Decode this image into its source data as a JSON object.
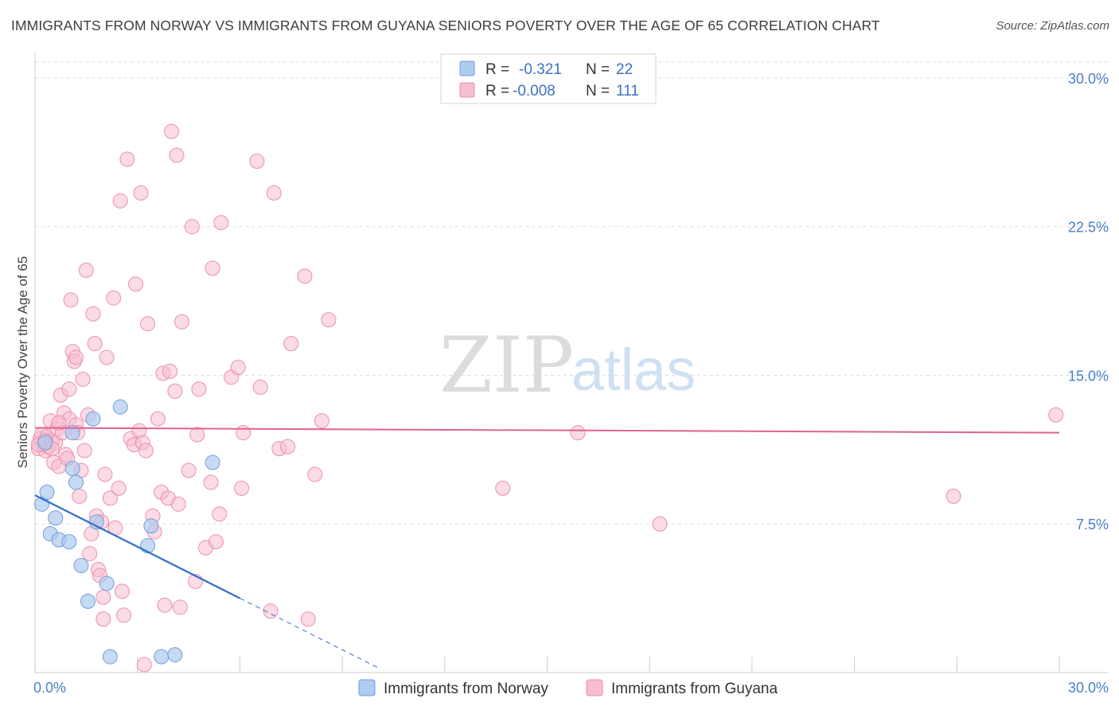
{
  "title": "IMMIGRANTS FROM NORWAY VS IMMIGRANTS FROM GUYANA SENIORS POVERTY OVER THE AGE OF 65 CORRELATION CHART",
  "source": "Source: ZipAtlas.com",
  "watermark": {
    "zip": "ZIP",
    "atlas": "atlas"
  },
  "colors": {
    "norway_fill": "#aecbf0",
    "norway_stroke": "#6d9fdc",
    "norway_line": "#2f6fcb",
    "guyana_fill": "#f7bdd0",
    "guyana_stroke": "#eb8fb0",
    "guyana_line": "#e0628f",
    "tick_text": "#4a7fc9",
    "grid": "#dddddd"
  },
  "legend": {
    "rows": [
      {
        "r_label": "R =",
        "r_value": "-0.321",
        "n_label": "N =",
        "n_value": "22"
      },
      {
        "r_label": "R =",
        "r_value": "-0.008",
        "n_label": "N =",
        "n_value": "111"
      }
    ]
  },
  "chart_data": {
    "type": "scatter",
    "title": "IMMIGRANTS FROM NORWAY VS IMMIGRANTS FROM GUYANA SENIORS POVERTY OVER THE AGE OF 65 CORRELATION CHART",
    "xlabel": "",
    "ylabel": "Seniors Poverty Over the Age of 65",
    "xlim": [
      0,
      30
    ],
    "ylim": [
      0,
      30.8
    ],
    "x_tick_labels": [
      {
        "value": 0,
        "label": "0.0%"
      },
      {
        "value": 30,
        "label": "30.0%"
      }
    ],
    "y_tick_labels": [
      {
        "value": 7.5,
        "label": "7.5%"
      },
      {
        "value": 15,
        "label": "15.0%"
      },
      {
        "value": 22.5,
        "label": "22.5%"
      },
      {
        "value": 30,
        "label": "30.0%"
      }
    ],
    "series": [
      {
        "name": "Immigrants from Norway",
        "R": -0.321,
        "N": 22,
        "trend": {
          "x0": 0,
          "y0": 8.95,
          "x1": 6.0,
          "y1": 3.75,
          "dash_to_x": 10.1
        },
        "points": [
          [
            0.2,
            8.5
          ],
          [
            0.35,
            9.1
          ],
          [
            0.45,
            7.0
          ],
          [
            0.6,
            7.8
          ],
          [
            0.7,
            6.7
          ],
          [
            1.0,
            6.6
          ],
          [
            1.1,
            12.1
          ],
          [
            1.1,
            10.3
          ],
          [
            1.2,
            9.6
          ],
          [
            1.35,
            5.4
          ],
          [
            1.55,
            3.6
          ],
          [
            1.7,
            12.8
          ],
          [
            1.8,
            7.6
          ],
          [
            2.1,
            4.5
          ],
          [
            2.5,
            13.4
          ],
          [
            2.2,
            0.8
          ],
          [
            3.4,
            7.4
          ],
          [
            3.3,
            6.4
          ],
          [
            3.7,
            0.8
          ],
          [
            4.1,
            0.9
          ],
          [
            5.2,
            10.6
          ],
          [
            0.3,
            11.6
          ]
        ]
      },
      {
        "name": "Immigrants from Guyana",
        "R": -0.008,
        "N": 111,
        "trend": {
          "x0": 0,
          "y0": 12.35,
          "x1": 30,
          "y1": 12.1
        },
        "points": [
          [
            0.1,
            11.3
          ],
          [
            0.15,
            11.8
          ],
          [
            0.2,
            12.0
          ],
          [
            0.25,
            11.5
          ],
          [
            0.3,
            11.2
          ],
          [
            0.35,
            11.9
          ],
          [
            0.4,
            11.4
          ],
          [
            0.45,
            12.7
          ],
          [
            0.5,
            11.7
          ],
          [
            0.55,
            10.6
          ],
          [
            0.6,
            11.6
          ],
          [
            0.65,
            12.3
          ],
          [
            0.7,
            10.4
          ],
          [
            0.75,
            14.0
          ],
          [
            0.8,
            12.1
          ],
          [
            0.85,
            13.1
          ],
          [
            0.9,
            11.0
          ],
          [
            0.95,
            10.8
          ],
          [
            1.0,
            14.3
          ],
          [
            1.0,
            12.8
          ],
          [
            1.05,
            18.8
          ],
          [
            1.1,
            16.2
          ],
          [
            1.15,
            15.7
          ],
          [
            1.2,
            15.9
          ],
          [
            1.2,
            12.5
          ],
          [
            1.3,
            8.9
          ],
          [
            1.35,
            10.2
          ],
          [
            1.4,
            14.8
          ],
          [
            1.45,
            11.2
          ],
          [
            1.5,
            20.3
          ],
          [
            1.55,
            13.0
          ],
          [
            1.6,
            6.0
          ],
          [
            1.65,
            7.0
          ],
          [
            1.7,
            18.1
          ],
          [
            1.75,
            16.6
          ],
          [
            1.8,
            7.9
          ],
          [
            1.85,
            5.2
          ],
          [
            1.9,
            4.9
          ],
          [
            1.95,
            7.6
          ],
          [
            2.0,
            3.8
          ],
          [
            2.0,
            2.7
          ],
          [
            2.05,
            10.0
          ],
          [
            2.1,
            15.9
          ],
          [
            2.2,
            8.8
          ],
          [
            2.3,
            18.9
          ],
          [
            2.35,
            7.3
          ],
          [
            2.45,
            9.3
          ],
          [
            2.5,
            23.8
          ],
          [
            2.55,
            4.1
          ],
          [
            2.6,
            2.9
          ],
          [
            2.7,
            25.9
          ],
          [
            2.8,
            11.8
          ],
          [
            2.9,
            11.5
          ],
          [
            2.95,
            19.6
          ],
          [
            3.05,
            12.2
          ],
          [
            3.1,
            24.2
          ],
          [
            3.15,
            11.6
          ],
          [
            3.2,
            0.4
          ],
          [
            3.25,
            11.2
          ],
          [
            3.3,
            17.6
          ],
          [
            3.45,
            7.9
          ],
          [
            3.5,
            7.1
          ],
          [
            3.6,
            12.8
          ],
          [
            3.7,
            9.1
          ],
          [
            3.75,
            15.1
          ],
          [
            3.8,
            3.4
          ],
          [
            3.9,
            8.8
          ],
          [
            3.95,
            15.2
          ],
          [
            4.0,
            27.3
          ],
          [
            4.1,
            14.2
          ],
          [
            4.15,
            26.1
          ],
          [
            4.2,
            8.5
          ],
          [
            4.25,
            3.3
          ],
          [
            4.3,
            17.7
          ],
          [
            4.5,
            10.2
          ],
          [
            4.6,
            22.5
          ],
          [
            4.7,
            4.6
          ],
          [
            4.75,
            12.0
          ],
          [
            4.8,
            14.3
          ],
          [
            5.0,
            6.3
          ],
          [
            5.15,
            9.6
          ],
          [
            5.2,
            20.4
          ],
          [
            5.3,
            6.6
          ],
          [
            5.4,
            8.0
          ],
          [
            5.45,
            22.7
          ],
          [
            5.75,
            14.9
          ],
          [
            5.95,
            15.4
          ],
          [
            6.05,
            9.3
          ],
          [
            6.1,
            12.1
          ],
          [
            6.5,
            25.8
          ],
          [
            6.6,
            14.4
          ],
          [
            6.9,
            3.1
          ],
          [
            7.0,
            24.2
          ],
          [
            7.15,
            11.3
          ],
          [
            7.4,
            11.4
          ],
          [
            7.5,
            16.6
          ],
          [
            7.9,
            20.0
          ],
          [
            8.0,
            2.7
          ],
          [
            8.2,
            10.0
          ],
          [
            8.4,
            12.7
          ],
          [
            8.6,
            17.8
          ],
          [
            13.7,
            9.3
          ],
          [
            15.9,
            12.1
          ],
          [
            18.3,
            7.5
          ],
          [
            26.9,
            8.9
          ],
          [
            29.9,
            13.0
          ],
          [
            0.1,
            11.5
          ],
          [
            0.3,
            11.7
          ],
          [
            0.5,
            11.3
          ],
          [
            0.7,
            12.6
          ],
          [
            1.25,
            12.1
          ]
        ]
      }
    ]
  },
  "bottom_legend": [
    {
      "label": "Immigrants from Norway"
    },
    {
      "label": "Immigrants from Guyana"
    }
  ]
}
